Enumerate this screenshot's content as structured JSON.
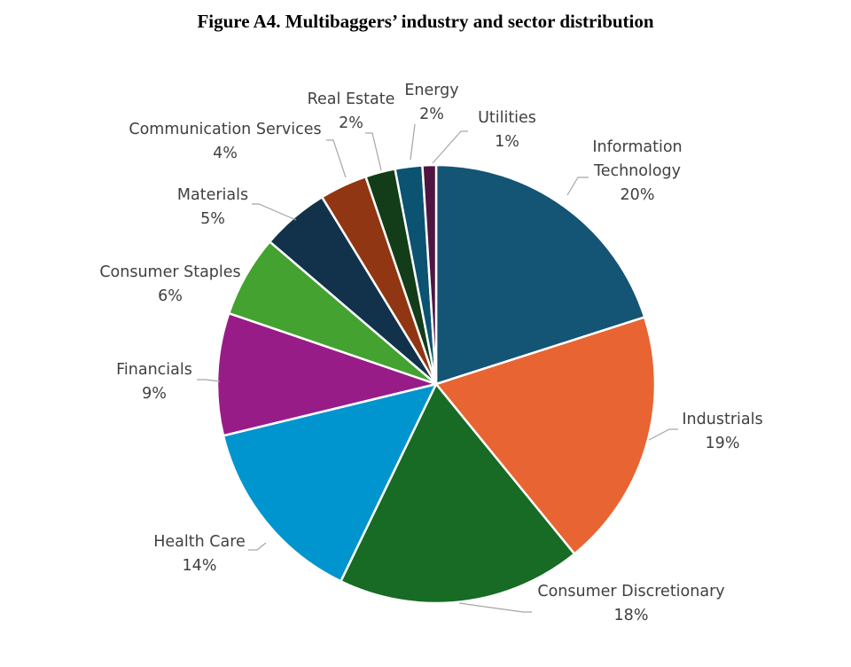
{
  "figure_title": "Figure A4. Multibaggers’ industry and sector distribution",
  "chart_data": {
    "type": "pie",
    "title": "",
    "start_angle_deg": 0,
    "direction": "clockwise",
    "slices": [
      {
        "name": "Information Technology",
        "label_lines": [
          "Information",
          "Technology"
        ],
        "value": 20,
        "value_label": "20%",
        "color": "#145474"
      },
      {
        "name": "Industrials",
        "label_lines": [
          "Industrials"
        ],
        "value": 19,
        "value_label": "19%",
        "color": "#e86433"
      },
      {
        "name": "Consumer Discretionary",
        "label_lines": [
          "Consumer Discretionary"
        ],
        "value": 18,
        "value_label": "18%",
        "color": "#176b24"
      },
      {
        "name": "Health Care",
        "label_lines": [
          "Health Care"
        ],
        "value": 14,
        "value_label": "14%",
        "color": "#0095cf"
      },
      {
        "name": "Financials",
        "label_lines": [
          "Financials"
        ],
        "value": 9,
        "value_label": "9%",
        "color": "#981c87"
      },
      {
        "name": "Consumer Staples",
        "label_lines": [
          "Consumer Staples"
        ],
        "value": 6,
        "value_label": "6%",
        "color": "#44a230"
      },
      {
        "name": "Materials",
        "label_lines": [
          "Materials"
        ],
        "value": 5,
        "value_label": "5%",
        "color": "#11324a"
      },
      {
        "name": "Communication Services",
        "label_lines": [
          "Communication Services"
        ],
        "value": 3.5,
        "value_label": "4%",
        "color": "#913612"
      },
      {
        "name": "Real Estate",
        "label_lines": [
          "Real Estate"
        ],
        "value": 2.2,
        "value_label": "2%",
        "color": "#123d18"
      },
      {
        "name": "Energy",
        "label_lines": [
          "Energy"
        ],
        "value": 2,
        "value_label": "2%",
        "color": "#0c5271"
      },
      {
        "name": "Utilities",
        "label_lines": [
          "Utilities"
        ],
        "value": 1,
        "value_label": "1%",
        "color": "#4e1540"
      }
    ]
  }
}
